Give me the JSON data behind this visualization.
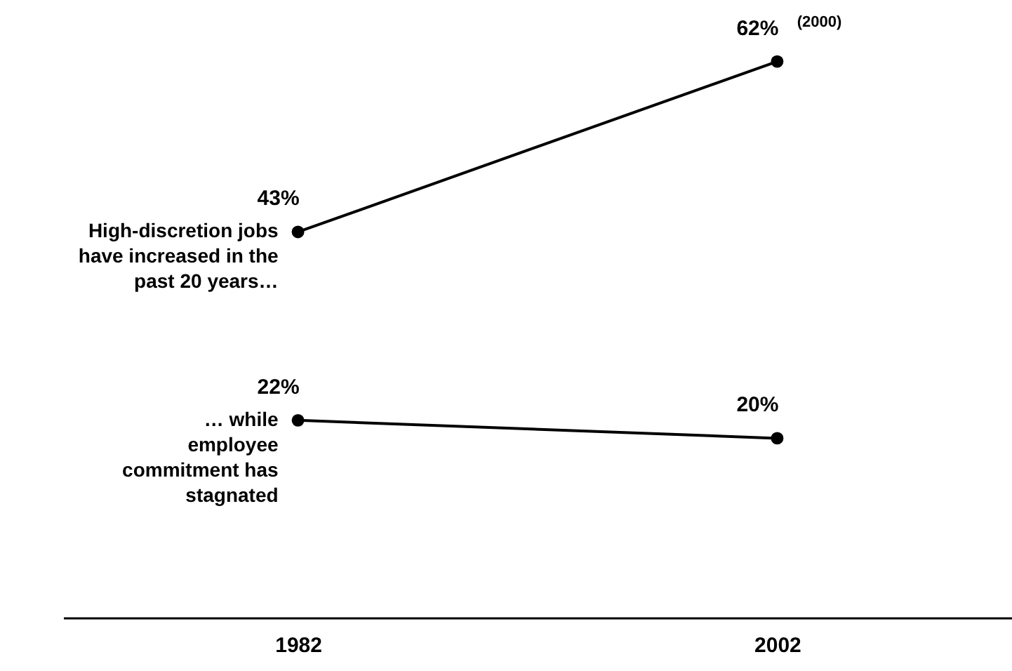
{
  "chart_data": {
    "type": "line",
    "categories": [
      "1982",
      "2002"
    ],
    "series": [
      {
        "name": "High-discretion jobs have increased in the past 20 years…",
        "color": "#000000",
        "values": [
          43,
          62
        ],
        "value_labels": [
          "43%",
          "62%"
        ]
      },
      {
        "name": "… while employee commitment has stagnated",
        "color": "#000000",
        "values": [
          22,
          20
        ],
        "value_labels": [
          "22%",
          "20%"
        ]
      }
    ],
    "annotations": [
      {
        "text": "(2000)",
        "x": "2002",
        "y": 62
      }
    ],
    "marker": "circle",
    "line_style": "solid",
    "legend": false,
    "grid": false,
    "tick_labels": "x"
  }
}
